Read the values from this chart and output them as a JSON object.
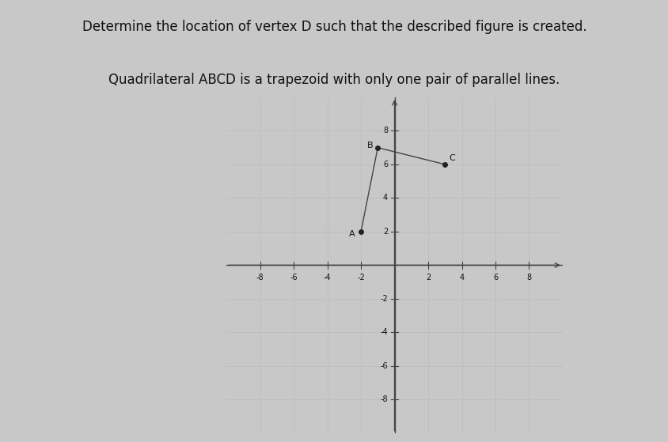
{
  "title_line1": "Determine the location of vertex D such that the described figure is created.",
  "title_line2": "Quadrilateral ABCD is a trapezoid with only one pair of parallel lines.",
  "background_color": "#c8c8c8",
  "plot_bg_color": "#f0f0f0",
  "points": {
    "A": [
      -2,
      2
    ],
    "B": [
      -1,
      7
    ],
    "C": [
      3,
      6
    ]
  },
  "edges": [
    [
      [
        -2,
        2
      ],
      [
        -1,
        7
      ]
    ],
    [
      [
        -1,
        7
      ],
      [
        3,
        6
      ]
    ]
  ],
  "label_offsets": {
    "A": [
      -0.7,
      -0.3
    ],
    "B": [
      -0.65,
      0.0
    ],
    "C": [
      0.25,
      0.25
    ]
  },
  "xlim": [
    -10,
    10
  ],
  "ylim": [
    -10,
    10
  ],
  "xticks": [
    -8,
    -6,
    -4,
    -2,
    2,
    4,
    6,
    8
  ],
  "yticks": [
    -8,
    -6,
    -4,
    -2,
    2,
    4,
    6,
    8
  ],
  "tick_label_size": 7,
  "point_color": "#222222",
  "line_color": "#444444",
  "axis_color": "#444444",
  "grid_color": "#bbbbbb",
  "text_color": "#111111",
  "title_fontsize": 12,
  "subtitle_fontsize": 12,
  "point_size": 4,
  "label_fontsize": 8
}
